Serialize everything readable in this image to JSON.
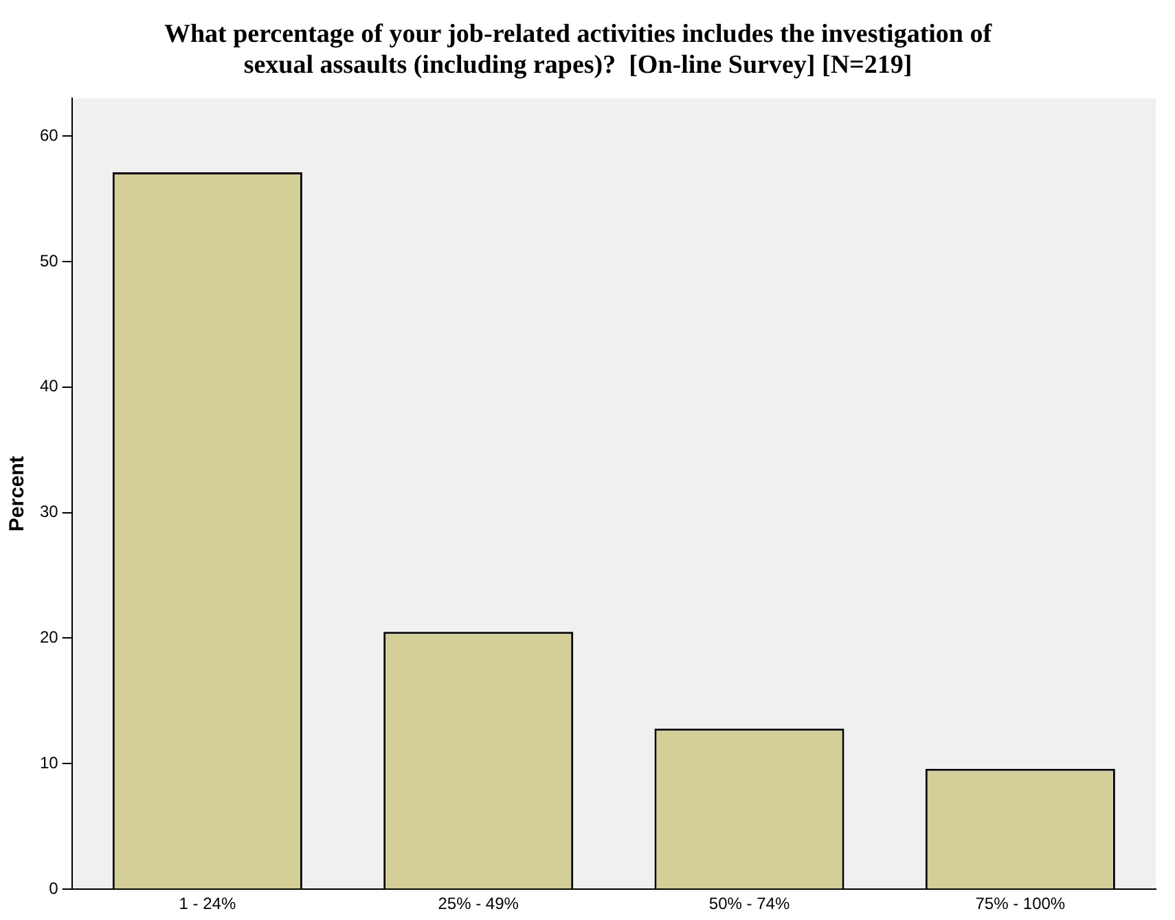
{
  "chart_data": {
    "type": "bar",
    "title": "What percentage of your job-related activities includes the investigation of sexual assaults (including rapes)?  [On-line Survey] [N=219]",
    "ylabel": "Percent",
    "categories": [
      "1 - 24%",
      "25% - 49%",
      "50% - 74%",
      "75% - 100%"
    ],
    "values": [
      57.1,
      20.5,
      12.8,
      9.6
    ],
    "color": "#d4cf96",
    "ylim": [
      0,
      63
    ],
    "yticks": [
      0,
      10,
      20,
      30,
      40,
      50,
      60
    ],
    "grid": false,
    "legend": false
  }
}
